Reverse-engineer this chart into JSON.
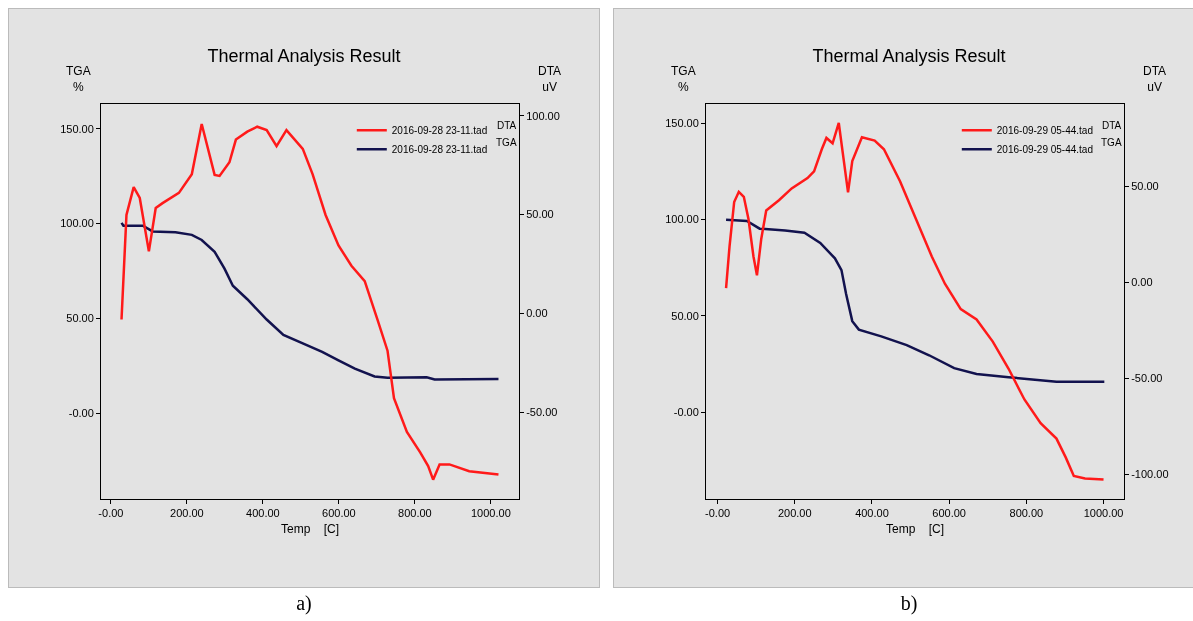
{
  "chart_data": [
    {
      "type": "line",
      "title": "Thermal Analysis Result",
      "xlabel": "Temp    [C]",
      "ylabel": "TGA\n%",
      "y2label": "DTA\nuV",
      "xlim": [
        -26,
        1074
      ],
      "xticks": [
        {
          "value": 0,
          "label": "-0.00"
        },
        {
          "value": 200,
          "label": "200.00"
        },
        {
          "value": 400,
          "label": "400.00"
        },
        {
          "value": 600,
          "label": "600.00"
        },
        {
          "value": 800,
          "label": "800.00"
        },
        {
          "value": 1000,
          "label": "1000.00"
        }
      ],
      "ylim": [
        -45,
        163
      ],
      "yticks": [
        {
          "value": 0,
          "label": "-0.00"
        },
        {
          "value": 50,
          "label": "50.00"
        },
        {
          "value": 100,
          "label": "100.00"
        },
        {
          "value": 150,
          "label": "150.00"
        }
      ],
      "y2lim": [
        -94,
        106
      ],
      "y2ticks": [
        {
          "value": -50,
          "label": "-50.00"
        },
        {
          "value": 0,
          "label": "0.00"
        },
        {
          "value": 50,
          "label": "50.00"
        },
        {
          "value": 100,
          "label": "100.00"
        }
      ],
      "grid": false,
      "legend": "top right",
      "marker": "none",
      "line_style": "solid",
      "series": [
        {
          "name": "2016-09-28 23-11.tad",
          "color": "#ff1a1a",
          "axis": "y2",
          "x": [
            28,
            41,
            60,
            76,
            100,
            118,
            136,
            179,
            213,
            239,
            273,
            286,
            312,
            329,
            359,
            385,
            410,
            436,
            462,
            505,
            531,
            565,
            599,
            633,
            668,
            702,
            728,
            745,
            779,
            814,
            835,
            848,
            865,
            891,
            943,
            1020
          ],
          "values": [
            -3.1,
            49.8,
            63.9,
            58.4,
            31.4,
            53.3,
            55.8,
            61,
            70.4,
            95.9,
            70.1,
            69.6,
            76.5,
            88,
            92,
            94.5,
            92.8,
            84.7,
            92.8,
            83.3,
            70.4,
            49.8,
            34.4,
            24.1,
            16.3,
            -3.4,
            -18.9,
            -43,
            -60,
            -70.4,
            -77.3,
            -84.2,
            -76.5,
            -76.5,
            -79.9,
            -81.6
          ]
        },
        {
          "name": "2016-09-28 23-11.tad",
          "color": "#12124e",
          "x": [
            28,
            33,
            84,
            110,
            170,
            213,
            239,
            273,
            299,
            321,
            359,
            410,
            454,
            505,
            556,
            599,
            642,
            694,
            728,
            831,
            852,
            1020
          ],
          "values": [
            100.4,
            98.9,
            98.9,
            95.9,
            95.5,
            94.1,
            91.4,
            85.2,
            76.3,
            67.3,
            60.2,
            49.5,
            41.4,
            37,
            32.5,
            28,
            23.6,
            19.5,
            18.8,
            19.1,
            17.9,
            18.2
          ]
        }
      ],
      "annotations": [
        "DTA",
        "TGA",
        "a)"
      ]
    },
    {
      "type": "line",
      "title": "Thermal Analysis Result",
      "xlabel": "Temp    [C]",
      "ylabel": "TGA\n%",
      "y2label": "DTA\nuV",
      "xlim": [
        -30,
        1053
      ],
      "xticks": [
        {
          "value": 0,
          "label": "-0.00"
        },
        {
          "value": 200,
          "label": "200.00"
        },
        {
          "value": 400,
          "label": "400.00"
        },
        {
          "value": 600,
          "label": "600.00"
        },
        {
          "value": 800,
          "label": "800.00"
        },
        {
          "value": 1000,
          "label": "1000.00"
        }
      ],
      "ylim": [
        -45,
        160
      ],
      "yticks": [
        {
          "value": 0,
          "label": "-0.00"
        },
        {
          "value": 50,
          "label": "50.00"
        },
        {
          "value": 100,
          "label": "100.00"
        },
        {
          "value": 150,
          "label": "150.00"
        }
      ],
      "y2lim": [
        -113,
        93
      ],
      "y2ticks": [
        {
          "value": -100,
          "label": "-100.00"
        },
        {
          "value": -50,
          "label": "-50.00"
        },
        {
          "value": 0,
          "label": "0.00"
        },
        {
          "value": 50,
          "label": "50.00"
        }
      ],
      "grid": false,
      "legend": "top right",
      "marker": "none",
      "line_style": "solid",
      "series": [
        {
          "name": "2016-09-29 05-44.tad",
          "color": "#ff1a1a",
          "axis": "y2",
          "x": [
            22,
            31,
            43,
            55,
            68,
            80,
            93,
            102,
            113,
            126,
            159,
            192,
            233,
            250,
            270,
            282,
            298,
            314,
            326,
            338,
            349,
            374,
            407,
            431,
            473,
            514,
            555,
            589,
            630,
            671,
            713,
            754,
            795,
            837,
            878,
            902,
            923,
            952,
            1000
          ],
          "values": [
            -3,
            18.8,
            41.9,
            47.2,
            44.6,
            33,
            13.5,
            3.7,
            22.4,
            37.5,
            42.8,
            49,
            54.4,
            57.9,
            69.4,
            75.3,
            72.5,
            83.1,
            65,
            46.9,
            63.2,
            75.7,
            73.9,
            69.4,
            52.6,
            33,
            13.5,
            -0.7,
            -14,
            -19.4,
            -30.9,
            -45.1,
            -61.1,
            -73.5,
            -81.5,
            -91.3,
            -101,
            -102.3,
            -102.8
          ]
        },
        {
          "name": "2016-09-29 05-44.tad",
          "color": "#12124e",
          "x": [
            22,
            76,
            109,
            175,
            225,
            266,
            304,
            321,
            333,
            349,
            366,
            424,
            490,
            548,
            613,
            671,
            754,
            878,
            1002
          ],
          "values": [
            99.9,
            99.3,
            95.3,
            94.4,
            93.2,
            87.9,
            79.9,
            73.8,
            61.4,
            47.3,
            42.9,
            39.4,
            34.9,
            29.6,
            22.9,
            19.9,
            18.2,
            15.9,
            15.9
          ]
        }
      ],
      "annotations": [
        "DTA",
        "TGA",
        "b)"
      ]
    }
  ]
}
